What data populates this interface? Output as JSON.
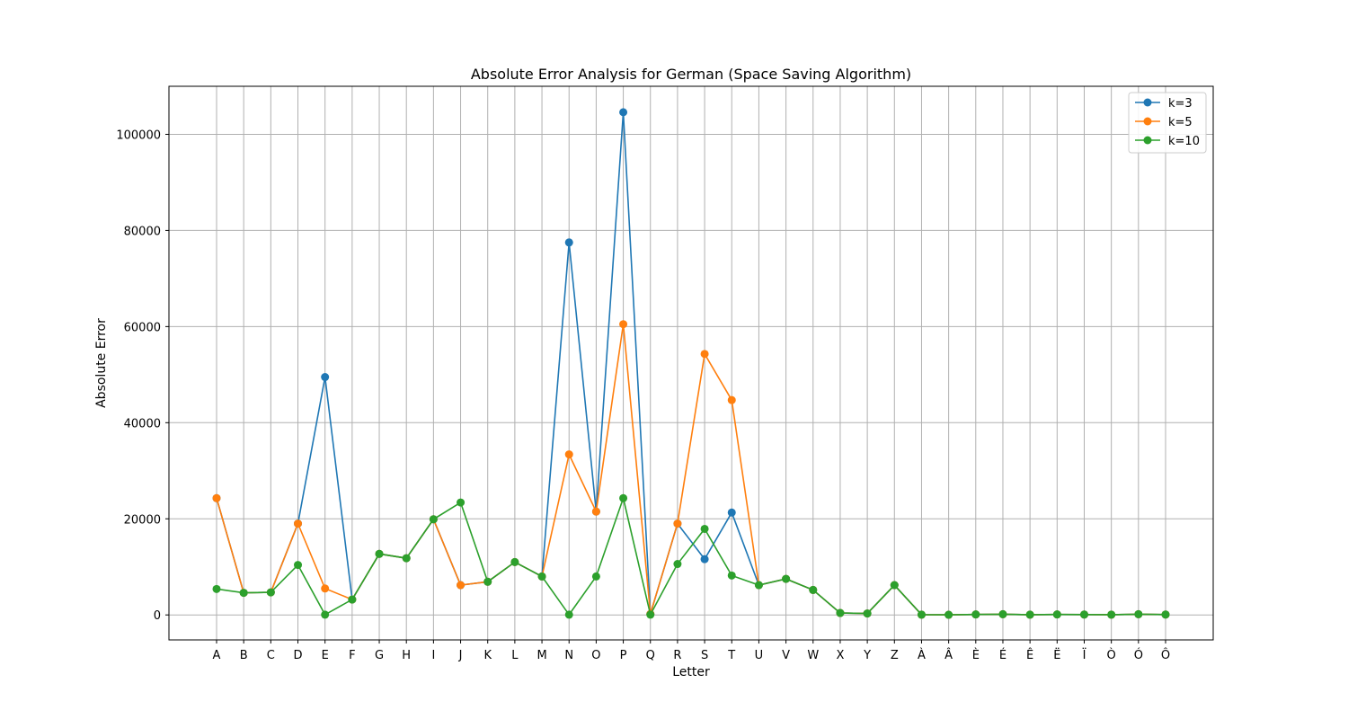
{
  "chart_data": {
    "type": "line",
    "title": "Absolute Error Analysis for German (Space Saving Algorithm)",
    "xlabel": "Letter",
    "ylabel": "Absolute Error",
    "categories": [
      "A",
      "B",
      "C",
      "D",
      "E",
      "F",
      "G",
      "H",
      "I",
      "J",
      "K",
      "L",
      "M",
      "N",
      "O",
      "P",
      "Q",
      "R",
      "S",
      "T",
      "U",
      "V",
      "W",
      "X",
      "Y",
      "Z",
      "À",
      "Â",
      "È",
      "É",
      "Ê",
      "Ë",
      "Ï",
      "Ò",
      "Ó",
      "Ô"
    ],
    "ylim": [
      -5200,
      110000
    ],
    "yticks": [
      0,
      20000,
      40000,
      60000,
      80000,
      100000
    ],
    "grid": true,
    "legend_position": "top-right",
    "series": [
      {
        "name": "k=3",
        "color": "#1f77b4",
        "values": [
          24300,
          4600,
          4700,
          19000,
          49500,
          3200,
          12700,
          11800,
          19900,
          6200,
          6900,
          11000,
          8000,
          77500,
          21500,
          104600,
          200,
          19000,
          11600,
          21300,
          6200,
          7500,
          5200,
          400,
          300,
          6200,
          50,
          30,
          100,
          150,
          50,
          100,
          80,
          50,
          150,
          80
        ]
      },
      {
        "name": "k=5",
        "color": "#ff7f0e",
        "values": [
          24300,
          4600,
          4700,
          19000,
          5500,
          3200,
          12700,
          11800,
          19900,
          6200,
          6900,
          11000,
          8000,
          33400,
          21500,
          60500,
          200,
          19000,
          54300,
          44700,
          6200,
          7500,
          5200,
          400,
          300,
          6200,
          50,
          30,
          100,
          150,
          50,
          100,
          80,
          50,
          150,
          80
        ]
      },
      {
        "name": "k=10",
        "color": "#2ca02c",
        "values": [
          5400,
          4600,
          4700,
          10400,
          50,
          3200,
          12700,
          11800,
          19900,
          23400,
          6900,
          11000,
          8000,
          50,
          8000,
          24300,
          50,
          10600,
          17900,
          8200,
          6200,
          7500,
          5200,
          400,
          300,
          6200,
          50,
          30,
          100,
          150,
          50,
          100,
          80,
          50,
          150,
          80
        ]
      }
    ]
  }
}
